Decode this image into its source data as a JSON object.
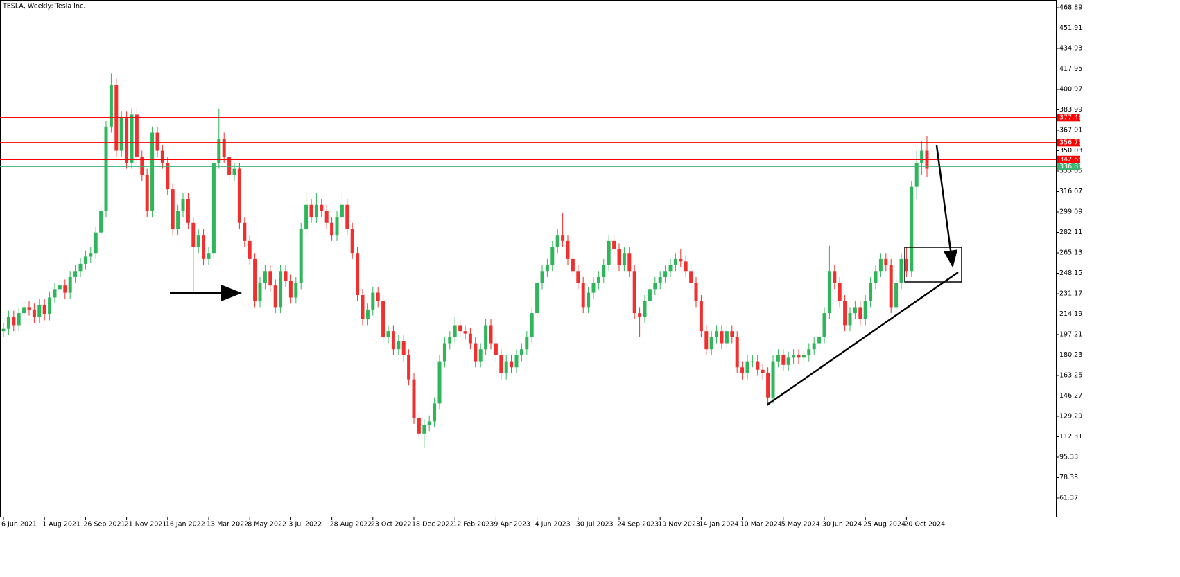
{
  "chart_data": {
    "type": "candlestick",
    "title": "TESLA, Weekly:  Tesla Inc.",
    "up_color": "#2fb55a",
    "down_color": "#f0302e",
    "categories": [
      "6 Jun 2021",
      null,
      null,
      null,
      null,
      null,
      null,
      null,
      "1 Aug 2021",
      null,
      null,
      null,
      null,
      null,
      null,
      null,
      "26 Sep 2021",
      null,
      null,
      null,
      null,
      null,
      null,
      null,
      "21 Nov 2021",
      null,
      null,
      null,
      null,
      null,
      null,
      null,
      "16 Jan 2022",
      null,
      null,
      null,
      null,
      null,
      null,
      null,
      "13 Mar 2022",
      null,
      null,
      null,
      null,
      null,
      null,
      null,
      "8 May 2022",
      null,
      null,
      null,
      null,
      null,
      null,
      null,
      "3 Jul 2022",
      null,
      null,
      null,
      null,
      null,
      null,
      null,
      "28 Aug 2022",
      null,
      null,
      null,
      null,
      null,
      null,
      null,
      "23 Oct 2022",
      null,
      null,
      null,
      null,
      null,
      null,
      null,
      "18 Dec 2022",
      null,
      null,
      null,
      null,
      null,
      null,
      null,
      "12 Feb 2023",
      null,
      null,
      null,
      null,
      null,
      null,
      null,
      "9 Apr 2023",
      null,
      null,
      null,
      null,
      null,
      null,
      null,
      "4 Jun 2023",
      null,
      null,
      null,
      null,
      null,
      null,
      null,
      "30 Jul 2023",
      null,
      null,
      null,
      null,
      null,
      null,
      null,
      "24 Sep 2023",
      null,
      null,
      null,
      null,
      null,
      null,
      null,
      "19 Nov 2023",
      null,
      null,
      null,
      null,
      null,
      null,
      null,
      "14 Jan 2024",
      null,
      null,
      null,
      null,
      null,
      null,
      null,
      "10 Mar 2024",
      null,
      null,
      null,
      null,
      null,
      null,
      null,
      "5 May 2024",
      null,
      null,
      null,
      null,
      null,
      null,
      null,
      "30 Jun 2024",
      null,
      null,
      null,
      null,
      null,
      null,
      null,
      "25 Aug 2024",
      null,
      null,
      null,
      null,
      null,
      null,
      null,
      "20 Oct 2024",
      null,
      null,
      null,
      null
    ],
    "open": [
      200,
      202,
      212,
      205,
      215,
      220,
      218,
      212,
      222,
      214,
      228,
      235,
      238,
      232,
      245,
      250,
      256,
      262,
      265,
      282,
      300,
      370,
      405,
      350,
      378,
      340,
      380,
      345,
      330,
      300,
      365,
      350,
      340,
      318,
      285,
      300,
      310,
      290,
      270,
      280,
      260,
      265,
      340,
      360,
      345,
      330,
      335,
      290,
      275,
      260,
      225,
      240,
      250,
      238,
      220,
      250,
      242,
      228,
      240,
      285,
      305,
      295,
      305,
      300,
      290,
      280,
      295,
      305,
      285,
      265,
      230,
      210,
      218,
      232,
      225,
      195,
      200,
      185,
      192,
      180,
      160,
      128,
      115,
      122,
      125,
      140,
      175,
      190,
      195,
      205,
      200,
      198,
      190,
      175,
      185,
      205,
      190,
      180,
      165,
      175,
      170,
      180,
      185,
      195,
      215,
      240,
      250,
      255,
      270,
      280,
      275,
      260,
      250,
      240,
      220,
      232,
      240,
      245,
      255,
      275,
      268,
      255,
      265,
      250,
      215,
      212,
      225,
      235,
      240,
      245,
      250,
      255,
      260,
      258,
      250,
      240,
      225,
      200,
      185,
      195,
      200,
      190,
      200,
      195,
      170,
      165,
      175,
      175,
      168,
      165,
      145,
      175,
      180,
      172,
      178,
      180,
      178,
      180,
      185,
      190,
      195,
      215,
      250,
      240,
      225,
      205,
      215,
      220,
      210,
      225,
      240,
      250,
      260,
      255,
      220,
      240,
      260,
      250,
      320,
      340,
      350
    ],
    "high": [
      207,
      217,
      217,
      220,
      225,
      225,
      223,
      227,
      227,
      233,
      240,
      243,
      243,
      250,
      255,
      261,
      267,
      270,
      287,
      305,
      375,
      414,
      410,
      383,
      383,
      385,
      385,
      350,
      335,
      370,
      370,
      355,
      345,
      323,
      305,
      315,
      315,
      295,
      285,
      285,
      270,
      345,
      385,
      365,
      350,
      340,
      340,
      295,
      280,
      265,
      245,
      255,
      255,
      243,
      255,
      255,
      247,
      245,
      290,
      315,
      310,
      315,
      310,
      305,
      295,
      300,
      315,
      310,
      290,
      270,
      235,
      223,
      237,
      237,
      230,
      205,
      205,
      197,
      197,
      185,
      165,
      133,
      127,
      130,
      145,
      180,
      195,
      200,
      212,
      210,
      205,
      203,
      195,
      190,
      210,
      210,
      195,
      185,
      180,
      180,
      185,
      190,
      200,
      220,
      245,
      255,
      260,
      275,
      285,
      298,
      280,
      265,
      255,
      245,
      237,
      245,
      250,
      260,
      280,
      280,
      273,
      270,
      270,
      255,
      220,
      230,
      240,
      245,
      250,
      255,
      260,
      265,
      268,
      263,
      255,
      245,
      230,
      205,
      200,
      205,
      205,
      205,
      205,
      200,
      175,
      180,
      180,
      180,
      173,
      170,
      180,
      185,
      185,
      183,
      185,
      185,
      185,
      190,
      195,
      200,
      220,
      271,
      255,
      245,
      230,
      220,
      225,
      225,
      230,
      245,
      255,
      265,
      265,
      260,
      245,
      265,
      270,
      325,
      350,
      358,
      362
    ],
    "low": [
      195,
      197,
      200,
      200,
      210,
      213,
      207,
      207,
      209,
      209,
      223,
      230,
      227,
      227,
      240,
      245,
      251,
      257,
      260,
      277,
      295,
      365,
      345,
      345,
      335,
      335,
      340,
      325,
      295,
      295,
      345,
      335,
      313,
      280,
      280,
      295,
      285,
      233,
      265,
      255,
      255,
      260,
      335,
      340,
      325,
      325,
      285,
      270,
      255,
      220,
      220,
      235,
      233,
      215,
      215,
      237,
      223,
      223,
      235,
      280,
      290,
      290,
      295,
      285,
      275,
      275,
      290,
      280,
      260,
      225,
      205,
      205,
      213,
      220,
      190,
      190,
      180,
      180,
      175,
      155,
      123,
      110,
      103,
      117,
      120,
      135,
      170,
      185,
      190,
      195,
      193,
      185,
      170,
      170,
      180,
      185,
      175,
      160,
      160,
      165,
      165,
      175,
      180,
      190,
      210,
      235,
      245,
      250,
      265,
      270,
      255,
      245,
      235,
      215,
      215,
      227,
      235,
      240,
      250,
      263,
      250,
      250,
      245,
      210,
      195,
      207,
      220,
      230,
      235,
      240,
      245,
      250,
      253,
      245,
      235,
      220,
      195,
      180,
      180,
      190,
      185,
      185,
      190,
      165,
      160,
      160,
      170,
      163,
      160,
      138,
      140,
      170,
      167,
      167,
      173,
      173,
      173,
      175,
      180,
      185,
      190,
      210,
      235,
      220,
      200,
      200,
      210,
      205,
      205,
      220,
      235,
      245,
      250,
      215,
      215,
      235,
      245,
      245,
      310,
      330,
      328
    ],
    "close": [
      202,
      212,
      205,
      215,
      220,
      218,
      212,
      222,
      214,
      228,
      235,
      238,
      232,
      245,
      250,
      256,
      262,
      265,
      282,
      300,
      370,
      405,
      350,
      378,
      340,
      380,
      345,
      330,
      300,
      365,
      350,
      340,
      318,
      285,
      300,
      310,
      290,
      270,
      280,
      260,
      265,
      340,
      360,
      345,
      330,
      335,
      290,
      275,
      260,
      225,
      240,
      250,
      238,
      220,
      250,
      242,
      228,
      240,
      285,
      305,
      295,
      305,
      300,
      290,
      280,
      295,
      305,
      285,
      265,
      230,
      210,
      218,
      232,
      225,
      195,
      200,
      185,
      192,
      180,
      160,
      128,
      115,
      122,
      125,
      140,
      175,
      190,
      195,
      205,
      200,
      198,
      190,
      175,
      185,
      205,
      190,
      180,
      165,
      175,
      170,
      180,
      185,
      195,
      215,
      240,
      250,
      255,
      270,
      280,
      275,
      260,
      250,
      240,
      220,
      232,
      240,
      245,
      255,
      275,
      268,
      255,
      265,
      250,
      215,
      212,
      225,
      235,
      240,
      245,
      250,
      255,
      260,
      258,
      250,
      240,
      225,
      200,
      185,
      195,
      200,
      190,
      200,
      195,
      170,
      165,
      175,
      175,
      168,
      165,
      145,
      175,
      180,
      172,
      178,
      180,
      178,
      180,
      185,
      190,
      195,
      215,
      250,
      240,
      225,
      205,
      215,
      220,
      210,
      225,
      240,
      250,
      260,
      255,
      220,
      240,
      260,
      250,
      320,
      340,
      350,
      335
    ],
    "ylim": [
      45.83,
      475.22
    ],
    "yticks": [
      468.89,
      451.91,
      434.93,
      417.95,
      400.97,
      383.99,
      367.01,
      350.03,
      333.05,
      316.07,
      299.09,
      282.11,
      265.13,
      248.15,
      231.17,
      214.19,
      197.21,
      180.23,
      163.25,
      146.27,
      129.29,
      112.31,
      95.33,
      78.35,
      61.37
    ],
    "levels": [
      {
        "value": 377.48,
        "color": "#ff0000"
      },
      {
        "value": 356.75,
        "color": "#ff0000"
      },
      {
        "value": 342.68,
        "color": "#ff0000"
      },
      {
        "value": 336.83,
        "color": "#3cb371"
      }
    ]
  }
}
